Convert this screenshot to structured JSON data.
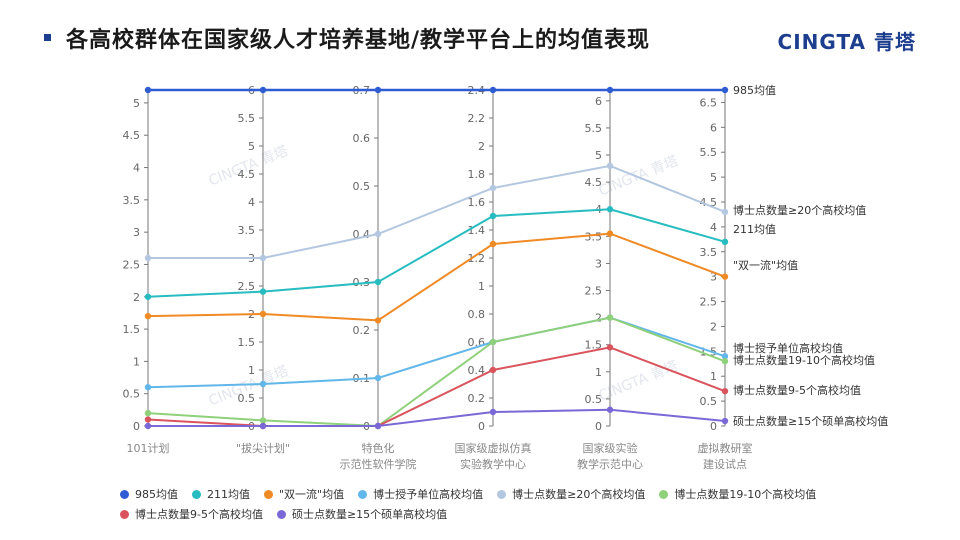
{
  "header": {
    "title": "各高校群体在国家级人才培养基地/教学平台上的均值表现",
    "brand": "CINGTA 青塔"
  },
  "chart_data": {
    "type": "line",
    "subtype": "parallel-coordinates",
    "title": "各高校群体在国家级人才培养基地/教学平台上的均值表现",
    "watermark": "CINGTA 青塔",
    "axes": [
      {
        "label": "101计划",
        "range": [
          0,
          5.2
        ],
        "ticks": [
          "0",
          "0.5",
          "1",
          "1.5",
          "2",
          "2.5",
          "3",
          "3.5",
          "4",
          "4.5",
          "5"
        ],
        "tick_values": [
          0,
          0.5,
          1,
          1.5,
          2,
          2.5,
          3,
          3.5,
          4,
          4.5,
          5
        ]
      },
      {
        "label": "\"拔尖计划\"",
        "range": [
          0,
          6
        ],
        "ticks": [
          "0",
          "0.5",
          "1",
          "1.5",
          "2",
          "2.5",
          "3",
          "3.5",
          "4",
          "4.5",
          "5",
          "5.5",
          "6"
        ],
        "tick_values": [
          0,
          0.5,
          1,
          1.5,
          2,
          2.5,
          3,
          3.5,
          4,
          4.5,
          5,
          5.5,
          6
        ]
      },
      {
        "label": "特色化\n示范性软件学院",
        "range": [
          0,
          0.7
        ],
        "ticks": [
          "0",
          "0.1",
          "0.2",
          "0.3",
          "0.4",
          "0.5",
          "0.6",
          "0.7"
        ],
        "tick_values": [
          0,
          0.1,
          0.2,
          0.3,
          0.4,
          0.5,
          0.6,
          0.7
        ]
      },
      {
        "label": "国家级虚拟仿真\n实验教学中心",
        "range": [
          0,
          2.4
        ],
        "ticks": [
          "0",
          "0.2",
          "0.4",
          "0.6",
          "0.8",
          "1",
          "1.2",
          "1.4",
          "1.6",
          "1.8",
          "2",
          "2.2",
          "2.4"
        ],
        "tick_values": [
          0,
          0.2,
          0.4,
          0.6,
          0.8,
          1,
          1.2,
          1.4,
          1.6,
          1.8,
          2,
          2.2,
          2.4
        ]
      },
      {
        "label": "国家级实验\n教学示范中心",
        "range": [
          0,
          6.2
        ],
        "ticks": [
          "0",
          "0.5",
          "1",
          "1.5",
          "2",
          "2.5",
          "3",
          "3.5",
          "4",
          "4.5",
          "5",
          "5.5",
          "6"
        ],
        "tick_values": [
          0,
          0.5,
          1,
          1.5,
          2,
          2.5,
          3,
          3.5,
          4,
          4.5,
          5,
          5.5,
          6
        ]
      },
      {
        "label": "虚拟教研室\n建设试点",
        "range": [
          0,
          6.75
        ],
        "ticks": [
          "0",
          "0.5",
          "1",
          "1.5",
          "2",
          "2.5",
          "3",
          "3.5",
          "4",
          "4.5",
          "5",
          "5.5",
          "6",
          "6.5"
        ],
        "tick_values": [
          0,
          0.5,
          1,
          1.5,
          2,
          2.5,
          3,
          3.5,
          4,
          4.5,
          5,
          5.5,
          6,
          6.5
        ]
      }
    ],
    "series": [
      {
        "name": "985均值",
        "color": "#2f5bd3",
        "values": [
          5.2,
          6,
          0.7,
          2.4,
          6.2,
          6.75
        ],
        "end_label": "985均值"
      },
      {
        "name": "211均值",
        "color": "#26bcc0",
        "values": [
          2.0,
          2.4,
          0.3,
          1.5,
          4.0,
          3.7
        ],
        "end_label": "211均值"
      },
      {
        "name": "\"双一流\"均值",
        "color": "#f08a24",
        "values": [
          1.7,
          2.0,
          0.22,
          1.3,
          3.55,
          3.0
        ],
        "end_label": "\"双一流\"均值"
      },
      {
        "name": "博士授予单位高校均值",
        "color": "#62b7ea",
        "values": [
          0.6,
          0.75,
          0.1,
          0.6,
          2.0,
          1.4
        ],
        "end_label": "博士授予单位高校均值"
      },
      {
        "name": "博士点数量≥20个高校均值",
        "color": "#b4c7e0",
        "values": [
          2.6,
          3.0,
          0.4,
          1.7,
          4.8,
          4.3
        ],
        "end_label": "博士点数量≥20个高校均值"
      },
      {
        "name": "博士点数量19-10个高校均值",
        "color": "#8fd07a",
        "values": [
          0.2,
          0.1,
          0.0,
          0.6,
          2.0,
          1.3
        ],
        "end_label": "博士点数量19-10个高校均值"
      },
      {
        "name": "博士点数量9-5个高校均值",
        "color": "#d9545c",
        "values": [
          0.1,
          0.0,
          0.0,
          0.4,
          1.45,
          0.7
        ],
        "end_label": "博士点数量9-5个高校均值"
      },
      {
        "name": "硕士点数量≥15个硕单高校均值",
        "color": "#7a68d6",
        "values": [
          0.0,
          0.0,
          0.0,
          0.1,
          0.3,
          0.1
        ],
        "end_label": "硕士点数量≥15个硕单高校均值"
      }
    ],
    "legend_position": "bottom"
  }
}
